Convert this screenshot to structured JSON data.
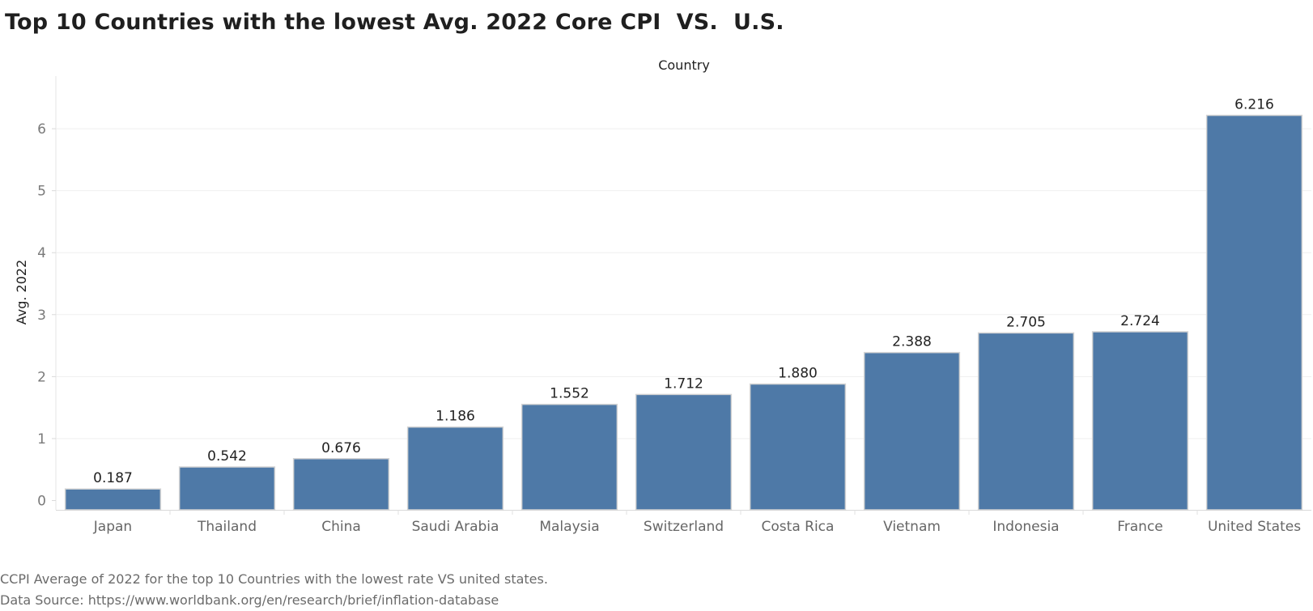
{
  "title": "Top 10 Countries with the lowest Avg. 2022 Core CPI  VS.  U.S.",
  "captions": {
    "line1": "CCPI Average of 2022 for the top 10 Countries with the lowest rate VS united states.",
    "line2": "Data Source: https://www.worldbank.org/en/research/brief/inflation-database"
  },
  "chart_data": {
    "type": "bar",
    "column_header": "Country",
    "ylabel": "Avg. 2022",
    "categories": [
      "Japan",
      "Thailand",
      "China",
      "Saudi Arabia",
      "Malaysia",
      "Switzerland",
      "Costa Rica",
      "Vietnam",
      "Indonesia",
      "France",
      "United States"
    ],
    "values": [
      0.187,
      0.542,
      0.676,
      1.186,
      1.552,
      1.712,
      1.88,
      2.388,
      2.705,
      2.724,
      6.216
    ],
    "value_labels": [
      "0.187",
      "0.542",
      "0.676",
      "1.186",
      "1.552",
      "1.712",
      "1.880",
      "2.388",
      "2.705",
      "2.724",
      "6.216"
    ],
    "yticks": [
      0,
      1,
      2,
      3,
      4,
      5,
      6
    ],
    "ylim": [
      -0.15,
      6.85
    ],
    "grid": true,
    "bar_color": "#4e79a7"
  }
}
